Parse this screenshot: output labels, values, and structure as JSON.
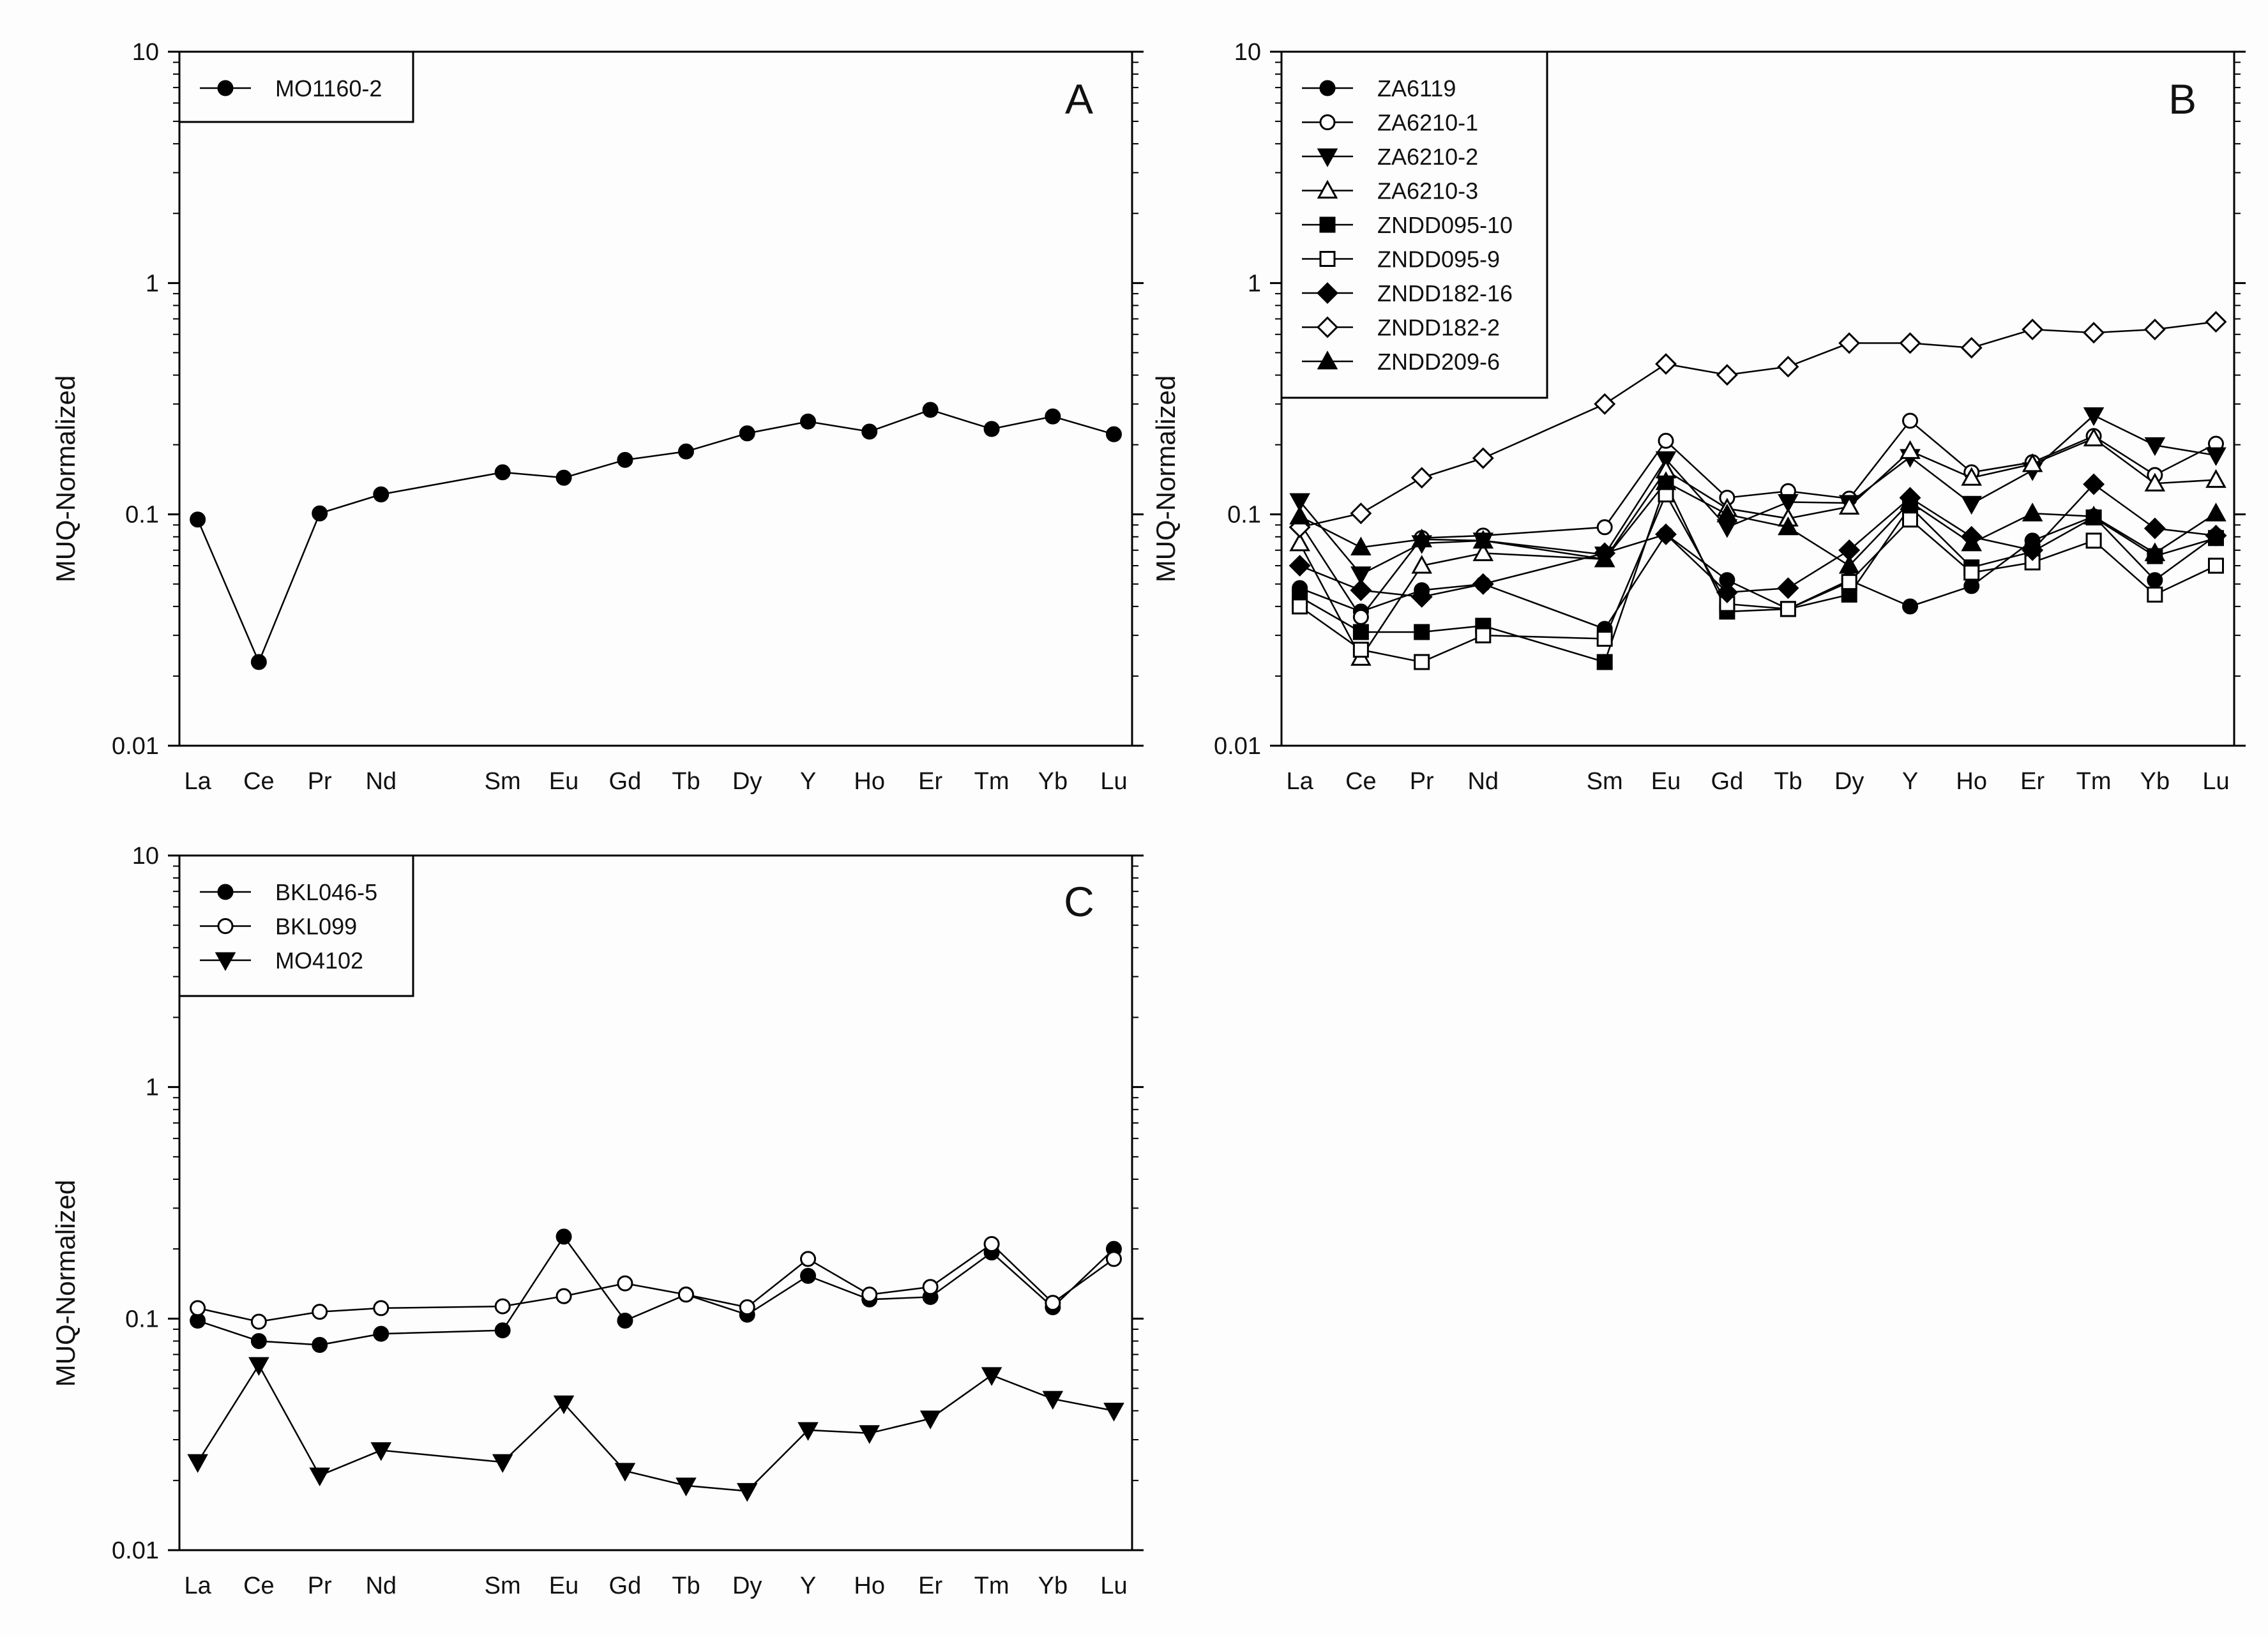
{
  "figure": {
    "panel_letters": [
      "A",
      "B",
      "C"
    ]
  },
  "chart_data": [
    {
      "panel": "A",
      "type": "line",
      "yscale": "log",
      "ylim": [
        0.01,
        10
      ],
      "ylabel": "MUQ-Normalized",
      "yticks": [
        "0.01",
        "0.1",
        "1",
        "10"
      ],
      "categories": [
        "La",
        "Ce",
        "Pr",
        "Nd",
        "Sm",
        "Eu",
        "Gd",
        "Tb",
        "Dy",
        "Y",
        "Ho",
        "Er",
        "Tm",
        "Yb",
        "Lu"
      ],
      "series": [
        {
          "name": "MO1160-2",
          "marker": "circle-filled",
          "values": [
            0.095,
            0.023,
            0.101,
            0.122,
            0.152,
            0.144,
            0.172,
            0.187,
            0.224,
            0.252,
            0.228,
            0.283,
            0.234,
            0.265,
            0.222
          ]
        }
      ]
    },
    {
      "panel": "B",
      "type": "line",
      "yscale": "log",
      "ylim": [
        0.01,
        10
      ],
      "ylabel": "MUQ-Normalized",
      "yticks": [
        "0.01",
        "0.1",
        "1",
        "10"
      ],
      "categories": [
        "La",
        "Ce",
        "Pr",
        "Nd",
        "Sm",
        "Eu",
        "Gd",
        "Tb",
        "Dy",
        "Y",
        "Ho",
        "Er",
        "Tm",
        "Yb",
        "Lu"
      ],
      "series": [
        {
          "name": "ZA6119",
          "marker": "circle-filled",
          "values": [
            0.048,
            0.038,
            0.047,
            0.05,
            0.032,
            0.082,
            0.052,
            0.039,
            0.052,
            0.04,
            0.049,
            0.077,
            0.098,
            0.052,
            0.081
          ]
        },
        {
          "name": "ZA6210-1",
          "marker": "circle-open",
          "values": [
            0.092,
            0.036,
            0.079,
            0.081,
            0.088,
            0.208,
            0.118,
            0.126,
            0.117,
            0.254,
            0.152,
            0.168,
            0.218,
            0.148,
            0.202
          ]
        },
        {
          "name": "ZA6210-2",
          "marker": "triangle-down-filled",
          "values": [
            0.114,
            0.055,
            0.075,
            0.077,
            0.067,
            0.173,
            0.088,
            0.113,
            0.112,
            0.177,
            0.111,
            0.155,
            0.268,
            0.199,
            0.18
          ]
        },
        {
          "name": "ZA6210-3",
          "marker": "triangle-up-open",
          "values": [
            0.075,
            0.024,
            0.06,
            0.068,
            0.064,
            0.155,
            0.106,
            0.096,
            0.108,
            0.188,
            0.144,
            0.165,
            0.213,
            0.136,
            0.141
          ]
        },
        {
          "name": "ZNDD095-10",
          "marker": "square-filled",
          "values": [
            0.044,
            0.031,
            0.031,
            0.033,
            0.023,
            0.136,
            0.038,
            0.039,
            0.045,
            0.108,
            0.059,
            0.069,
            0.097,
            0.066,
            0.079
          ]
        },
        {
          "name": "ZNDD095-9",
          "marker": "square-open",
          "values": [
            0.04,
            0.026,
            0.023,
            0.03,
            0.029,
            0.122,
            0.041,
            0.039,
            0.051,
            0.095,
            0.056,
            0.062,
            0.077,
            0.045,
            0.06
          ]
        },
        {
          "name": "ZNDD182-16",
          "marker": "diamond-filled",
          "values": [
            0.06,
            0.047,
            0.044,
            0.05,
            0.068,
            0.082,
            0.046,
            0.048,
            0.07,
            0.118,
            0.08,
            0.07,
            0.135,
            0.087,
            0.081
          ]
        },
        {
          "name": "ZNDD182-2",
          "marker": "diamond-open",
          "values": [
            0.088,
            0.101,
            0.144,
            0.175,
            0.3,
            0.447,
            0.401,
            0.435,
            0.55,
            0.55,
            0.525,
            0.63,
            0.61,
            0.63,
            0.68
          ]
        },
        {
          "name": "ZNDD209-6",
          "marker": "triangle-up-filled",
          "values": [
            0.098,
            0.072,
            0.078,
            0.077,
            0.064,
            0.138,
            0.1,
            0.088,
            0.06,
            0.113,
            0.075,
            0.101,
            0.098,
            0.068,
            0.101
          ]
        }
      ]
    },
    {
      "panel": "C",
      "type": "line",
      "yscale": "log",
      "ylim": [
        0.01,
        10
      ],
      "ylabel": "MUQ-Normalized",
      "yticks": [
        "0.01",
        "0.1",
        "1",
        "10"
      ],
      "categories": [
        "La",
        "Ce",
        "Pr",
        "Nd",
        "Sm",
        "Eu",
        "Gd",
        "Tb",
        "Dy",
        "Y",
        "Ho",
        "Er",
        "Tm",
        "Yb",
        "Lu"
      ],
      "series": [
        {
          "name": "BKL046-5",
          "marker": "circle-filled",
          "values": [
            0.098,
            0.08,
            0.077,
            0.086,
            0.089,
            0.226,
            0.098,
            0.127,
            0.104,
            0.153,
            0.121,
            0.124,
            0.193,
            0.112,
            0.2
          ]
        },
        {
          "name": "BKL099",
          "marker": "circle-open",
          "values": [
            0.111,
            0.097,
            0.107,
            0.111,
            0.113,
            0.125,
            0.142,
            0.127,
            0.112,
            0.181,
            0.127,
            0.137,
            0.21,
            0.117,
            0.181
          ]
        },
        {
          "name": "MO4102",
          "marker": "triangle-down-filled",
          "values": [
            0.024,
            0.063,
            0.021,
            0.027,
            0.024,
            0.043,
            0.022,
            0.019,
            0.018,
            0.033,
            0.032,
            0.037,
            0.057,
            0.045,
            0.04
          ]
        }
      ]
    }
  ]
}
